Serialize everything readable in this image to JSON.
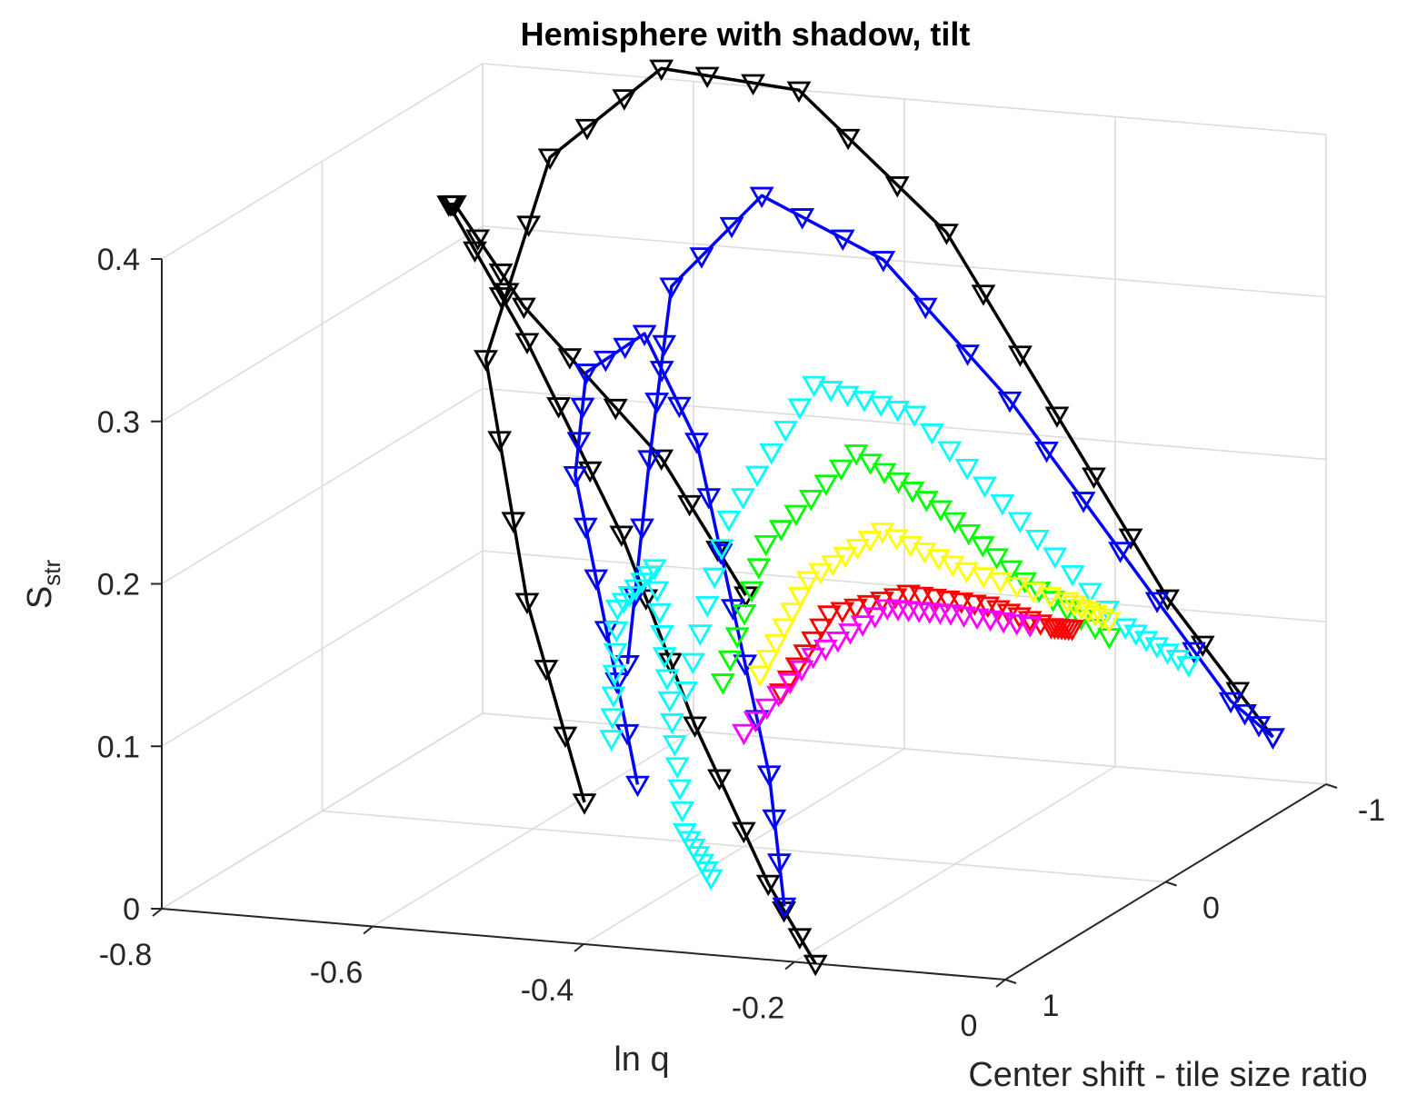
{
  "chart_data": {
    "type": "line3d",
    "title": "Hemisphere with shadow, tilt",
    "xlabel": "ln q",
    "ylabel": "Center shift - tile size ratio",
    "zlabel": "S",
    "zlabel_sub": "str",
    "xlim": [
      -0.8,
      0
    ],
    "ylim": [
      -1,
      1
    ],
    "zlim": [
      0,
      0.4
    ],
    "xticks": [
      "-0.8",
      "-0.6",
      "-0.4",
      "-0.2",
      "0"
    ],
    "yticks": [
      "-1",
      "0",
      "1"
    ],
    "zticks": [
      "0",
      "0.1",
      "0.2",
      "0.3",
      "0.4"
    ],
    "grid": true,
    "marker": "triangle-down",
    "series": [
      {
        "color": "#000000",
        "line": true,
        "points": [
          [
            -0.52,
            -0.8,
            0.1
          ],
          [
            -0.6,
            -0.8,
            0.18
          ],
          [
            -0.7,
            -0.6,
            0.28
          ],
          [
            -0.72,
            -0.3,
            0.36
          ],
          [
            -0.68,
            0.0,
            0.38
          ],
          [
            -0.56,
            0.3,
            0.32
          ],
          [
            -0.44,
            0.5,
            0.22
          ],
          [
            -0.34,
            0.7,
            0.12
          ],
          [
            -0.24,
            0.9,
            0.04
          ],
          [
            -0.18,
            1.0,
            0.0
          ]
        ]
      },
      {
        "color": "#000000",
        "line": true,
        "points": [
          [
            -0.46,
            0.6,
            0.06
          ],
          [
            -0.56,
            0.3,
            0.16
          ],
          [
            -0.66,
            -0.1,
            0.28
          ],
          [
            -0.66,
            -0.5,
            0.38
          ],
          [
            -0.6,
            -0.8,
            0.42
          ],
          [
            -0.5,
            -1.0,
            0.4
          ],
          [
            -0.36,
            -1.0,
            0.32
          ],
          [
            -0.24,
            -0.9,
            0.22
          ],
          [
            -0.12,
            -0.8,
            0.12
          ],
          [
            -0.02,
            -0.8,
            0.04
          ]
        ]
      },
      {
        "color": "#0000ff",
        "line": true,
        "points": [
          [
            -0.48,
            0.2,
            0.12
          ],
          [
            -0.52,
            -0.2,
            0.22
          ],
          [
            -0.56,
            -0.6,
            0.3
          ],
          [
            -0.52,
            -0.9,
            0.34
          ],
          [
            -0.42,
            -1.0,
            0.3
          ],
          [
            -0.3,
            -1.0,
            0.22
          ],
          [
            -0.18,
            -0.9,
            0.14
          ],
          [
            -0.06,
            -0.8,
            0.06
          ],
          [
            -0.02,
            -0.8,
            0.04
          ]
        ]
      },
      {
        "color": "#0000ff",
        "line": true,
        "points": [
          [
            -0.44,
            0.4,
            0.06
          ],
          [
            -0.5,
            0.2,
            0.14
          ],
          [
            -0.56,
            0.0,
            0.22
          ],
          [
            -0.58,
            -0.2,
            0.27
          ],
          [
            -0.54,
            -0.3,
            0.29
          ],
          [
            -0.46,
            -0.1,
            0.24
          ],
          [
            -0.38,
            0.2,
            0.16
          ],
          [
            -0.3,
            0.5,
            0.08
          ],
          [
            -0.24,
            0.8,
            0.02
          ]
        ]
      },
      {
        "color": "#00ffff",
        "line": false,
        "points": [
          [
            -0.44,
            0.1,
            0.1
          ],
          [
            -0.46,
            -0.3,
            0.18
          ],
          [
            -0.44,
            -0.7,
            0.24
          ],
          [
            -0.36,
            -0.8,
            0.22
          ],
          [
            -0.26,
            -0.8,
            0.16
          ],
          [
            -0.16,
            -0.8,
            0.1
          ],
          [
            -0.1,
            -0.8,
            0.08
          ]
        ]
      },
      {
        "color": "#00ffff",
        "line": false,
        "points": [
          [
            -0.48,
            0.3,
            0.08
          ],
          [
            -0.52,
            0.0,
            0.14
          ],
          [
            -0.5,
            -0.1,
            0.16
          ],
          [
            -0.44,
            0.2,
            0.1
          ],
          [
            -0.38,
            0.5,
            0.04
          ],
          [
            -0.34,
            0.6,
            0.02
          ]
        ]
      },
      {
        "color": "#00ff00",
        "line": false,
        "points": [
          [
            -0.42,
            0.0,
            0.1
          ],
          [
            -0.44,
            -0.4,
            0.16
          ],
          [
            -0.4,
            -0.7,
            0.2
          ],
          [
            -0.32,
            -0.7,
            0.17
          ],
          [
            -0.24,
            -0.7,
            0.13
          ],
          [
            -0.16,
            -0.7,
            0.1
          ]
        ]
      },
      {
        "color": "#ffff00",
        "line": false,
        "points": [
          [
            -0.4,
            -0.1,
            0.1
          ],
          [
            -0.4,
            -0.4,
            0.14
          ],
          [
            -0.36,
            -0.6,
            0.16
          ],
          [
            -0.28,
            -0.6,
            0.14
          ],
          [
            -0.2,
            -0.7,
            0.12
          ],
          [
            -0.16,
            -0.7,
            0.11
          ]
        ]
      },
      {
        "color": "#ff0000",
        "line": false,
        "points": [
          [
            -0.38,
            -0.1,
            0.09
          ],
          [
            -0.38,
            -0.4,
            0.12
          ],
          [
            -0.32,
            -0.5,
            0.13
          ],
          [
            -0.26,
            -0.6,
            0.12
          ],
          [
            -0.2,
            -0.6,
            0.11
          ],
          [
            -0.18,
            -0.6,
            0.11
          ]
        ]
      },
      {
        "color": "#ff00ff",
        "line": false,
        "points": [
          [
            -0.4,
            0.0,
            0.07
          ],
          [
            -0.38,
            -0.3,
            0.1
          ],
          [
            -0.34,
            -0.5,
            0.12
          ],
          [
            -0.28,
            -0.5,
            0.12
          ],
          [
            -0.22,
            -0.6,
            0.11
          ]
        ]
      }
    ]
  }
}
